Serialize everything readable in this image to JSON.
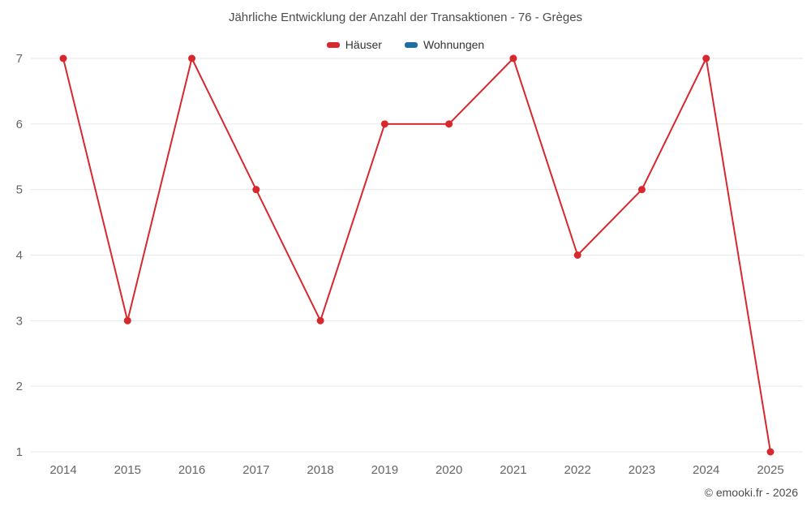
{
  "chart": {
    "title": "Jährliche Entwicklung der Anzahl der Transaktionen - 76 - Grèges",
    "footer": "© emooki.fr - 2026"
  },
  "chart_data": {
    "type": "line",
    "title": "Jährliche Entwicklung der Anzahl der Transaktionen - 76 - Grèges",
    "categories": [
      "2014",
      "2015",
      "2016",
      "2017",
      "2018",
      "2019",
      "2020",
      "2021",
      "2022",
      "2023",
      "2024",
      "2025"
    ],
    "series": [
      {
        "name": "Häuser",
        "color": "#d7282e",
        "values": [
          7,
          3,
          7,
          5,
          3,
          6,
          6,
          7,
          4,
          5,
          7,
          1
        ]
      },
      {
        "name": "Wohnungen",
        "color": "#1c6ea4",
        "values": []
      }
    ],
    "xlabel": "",
    "ylabel": "",
    "ylim": [
      1,
      7
    ],
    "yticks": [
      1,
      2,
      3,
      4,
      5,
      6,
      7
    ],
    "grid": true,
    "legend_position": "top",
    "marker": "circle"
  }
}
